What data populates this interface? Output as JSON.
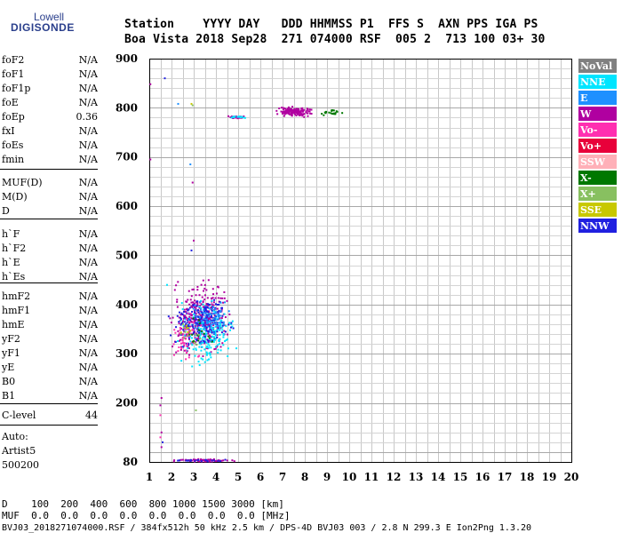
{
  "logo": {
    "line1": "Lowell",
    "line2": "DIGISONDE"
  },
  "header": {
    "line1": "Station    YYYY DAY   DDD HHMMSS P1  FFS S  AXN PPS IGA PS",
    "line2": "Boa Vista 2018 Sep28  271 074000 RSF  005 2  713 100 03+ 30"
  },
  "params": [
    {
      "name": "foF2",
      "value": "N/A"
    },
    {
      "name": "foF1",
      "value": "N/A"
    },
    {
      "name": "foF1p",
      "value": "N/A"
    },
    {
      "name": "foE",
      "value": "N/A"
    },
    {
      "name": "foEp",
      "value": "0.36"
    },
    {
      "name": "fxI",
      "value": "N/A"
    },
    {
      "name": "foEs",
      "value": "N/A"
    },
    {
      "name": "fmin",
      "value": "N/A"
    },
    {
      "name": "MUF(D)",
      "value": "N/A"
    },
    {
      "name": "M(D)",
      "value": "N/A"
    },
    {
      "name": "D",
      "value": "N/A"
    },
    {
      "name": "h`F",
      "value": "N/A"
    },
    {
      "name": "h`F2",
      "value": "N/A"
    },
    {
      "name": "h`E",
      "value": "N/A"
    },
    {
      "name": "h`Es",
      "value": "N/A"
    },
    {
      "name": "hmF2",
      "value": "N/A"
    },
    {
      "name": "hmF1",
      "value": "N/A"
    },
    {
      "name": "hmE",
      "value": "N/A"
    },
    {
      "name": "yF2",
      "value": "N/A"
    },
    {
      "name": "yF1",
      "value": "N/A"
    },
    {
      "name": "yE",
      "value": "N/A"
    },
    {
      "name": "B0",
      "value": "N/A"
    },
    {
      "name": "B1",
      "value": "N/A"
    },
    {
      "name": "C-level",
      "value": "44"
    }
  ],
  "auto": {
    "line1": "Auto:",
    "line2": "Artist5",
    "line3": "500200"
  },
  "footer": {
    "line1": "D    100  200  400  600  800 1000 1500 3000 [km]",
    "line2": "MUF  0.0  0.0  0.0  0.0  0.0  0.0  0.0  0.0 [MHz]",
    "line3": "BVJ03_2018271074000.RSF / 384fx512h 50 kHz 2.5 km / DPS-4D BVJ03 003 / 2.8 N 299.3 E Ion2Png 1.3.20"
  },
  "legend": [
    {
      "label": "NoVal",
      "color": "#808080"
    },
    {
      "label": "NNE",
      "color": "#00e5ff"
    },
    {
      "label": "E",
      "color": "#1e90ff"
    },
    {
      "label": "W",
      "color": "#b000a0"
    },
    {
      "label": "Vo-",
      "color": "#ff2fb0"
    },
    {
      "label": "Vo+",
      "color": "#e8003a"
    },
    {
      "label": "SSW",
      "color": "#ffb0b8"
    },
    {
      "label": "X-",
      "color": "#007800"
    },
    {
      "label": "X+",
      "color": "#88c060"
    },
    {
      "label": "SSE",
      "color": "#c8c800"
    },
    {
      "label": "NNW",
      "color": "#2020e0"
    }
  ],
  "chart_data": {
    "type": "scatter",
    "title": "",
    "xlabel": "",
    "ylabel": "",
    "xlim": [
      1,
      20
    ],
    "ylim": [
      80,
      900
    ],
    "xticks": [
      "1",
      "2",
      "3",
      "4",
      "5",
      "6",
      "7",
      "8",
      "9",
      "10",
      "11",
      "12",
      "13",
      "14",
      "15",
      "16",
      "17",
      "18",
      "19",
      "20"
    ],
    "yticks": [
      "80",
      "200",
      "300",
      "400",
      "500",
      "600",
      "700",
      "800",
      "900"
    ],
    "grid": true,
    "clusters": [
      {
        "label": "W",
        "color": "#b000a0",
        "x_range": [
          1.7,
          5.1
        ],
        "y_range": [
          270,
          470
        ],
        "n": 330
      },
      {
        "label": "NNE",
        "color": "#00e5ff",
        "x_range": [
          1.9,
          5.3
        ],
        "y_range": [
          260,
          420
        ],
        "n": 200
      },
      {
        "label": "NNW",
        "color": "#2020e0",
        "x_range": [
          1.7,
          5.0
        ],
        "y_range": [
          300,
          430
        ],
        "n": 180
      },
      {
        "label": "E",
        "color": "#1e90ff",
        "x_range": [
          2.6,
          4.8
        ],
        "y_range": [
          330,
          420
        ],
        "n": 70
      },
      {
        "label": "Vo-",
        "color": "#ff2fb0",
        "x_range": [
          1.8,
          3.6
        ],
        "y_range": [
          270,
          400
        ],
        "n": 50
      },
      {
        "label": "X-",
        "color": "#007800",
        "x_range": [
          2.1,
          4.5
        ],
        "y_range": [
          300,
          390
        ],
        "n": 16
      },
      {
        "label": "X+",
        "color": "#88c060",
        "x_range": [
          2.1,
          3.5
        ],
        "y_range": [
          300,
          380
        ],
        "n": 12
      },
      {
        "label": "SSE",
        "color": "#c8c800",
        "x_range": [
          2.2,
          3.0
        ],
        "y_range": [
          330,
          370
        ],
        "n": 6
      },
      {
        "label": "W",
        "color": "#b000a0",
        "x_range": [
          6.5,
          8.6
        ],
        "y_range": [
          778,
          805
        ],
        "n": 140
      },
      {
        "label": "W",
        "color": "#b000a0",
        "x_range": [
          4.4,
          5.6
        ],
        "y_range": [
          778,
          784
        ],
        "n": 30
      },
      {
        "label": "NNE",
        "color": "#00e5ff",
        "x_range": [
          4.4,
          5.6
        ],
        "y_range": [
          778,
          784
        ],
        "n": 14
      },
      {
        "label": "X-",
        "color": "#007800",
        "x_range": [
          8.6,
          9.8
        ],
        "y_range": [
          782,
          798
        ],
        "n": 20
      },
      {
        "label": "W",
        "color": "#b000a0",
        "x_range": [
          1.65,
          5.2
        ],
        "y_range": [
          80,
          86
        ],
        "n": 70
      },
      {
        "label": "NNW",
        "color": "#2020e0",
        "x_range": [
          1.65,
          5.2
        ],
        "y_range": [
          80,
          86
        ],
        "n": 20
      }
    ],
    "points": [
      {
        "x": 1.7,
        "y": 860,
        "label": "NNW"
      },
      {
        "x": 1.05,
        "y": 848,
        "label": "W"
      },
      {
        "x": 2.3,
        "y": 808,
        "label": "E"
      },
      {
        "x": 2.9,
        "y": 808,
        "label": "SSE"
      },
      {
        "x": 2.95,
        "y": 805,
        "label": "X+"
      },
      {
        "x": 1.05,
        "y": 695,
        "label": "W"
      },
      {
        "x": 2.85,
        "y": 685,
        "label": "E"
      },
      {
        "x": 2.95,
        "y": 648,
        "label": "W"
      },
      {
        "x": 1.55,
        "y": 210,
        "label": "W"
      },
      {
        "x": 1.5,
        "y": 195,
        "label": "W"
      },
      {
        "x": 1.5,
        "y": 175,
        "label": "Vo-"
      },
      {
        "x": 1.55,
        "y": 140,
        "label": "W"
      },
      {
        "x": 1.5,
        "y": 130,
        "label": "Vo-"
      },
      {
        "x": 1.6,
        "y": 120,
        "label": "NNW"
      },
      {
        "x": 1.55,
        "y": 110,
        "label": "W"
      },
      {
        "x": 3.1,
        "y": 185,
        "label": "X+"
      },
      {
        "x": 1.8,
        "y": 440,
        "label": "NNE"
      },
      {
        "x": 2.9,
        "y": 510,
        "label": "NNW"
      },
      {
        "x": 3.0,
        "y": 530,
        "label": "W"
      }
    ]
  }
}
